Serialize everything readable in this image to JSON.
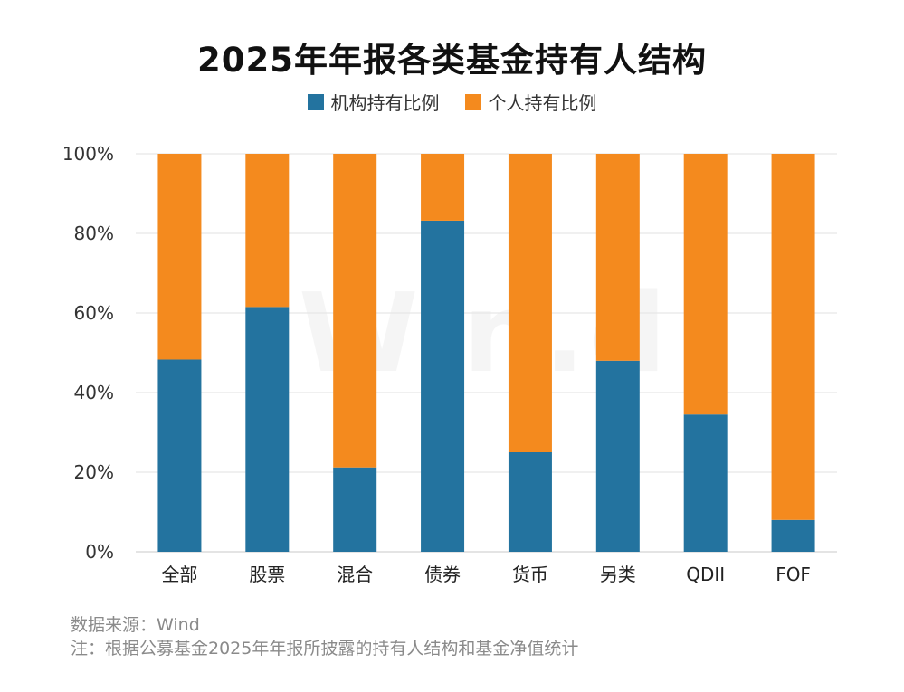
{
  "chart_data": {
    "type": "bar",
    "stacked": true,
    "title": "2025年年报各类基金持有人结构",
    "categories": [
      "全部",
      "股票",
      "混合",
      "债券",
      "货币",
      "另类",
      "QDII",
      "FOF"
    ],
    "series": [
      {
        "name": "机构持有比例",
        "color": "#23739f",
        "values": [
          48.3,
          61.5,
          21.2,
          83.2,
          25.0,
          48.0,
          34.5,
          8.0
        ]
      },
      {
        "name": "个人持有比例",
        "color": "#f48a1e",
        "values": [
          51.7,
          38.5,
          78.8,
          16.8,
          75.0,
          52.0,
          65.5,
          92.0
        ]
      }
    ],
    "ylim": [
      0,
      100
    ],
    "yticks": [
      "0%",
      "20%",
      "40%",
      "60%",
      "80%",
      "100%"
    ],
    "grid": true,
    "legend": "top-center"
  },
  "watermark": "Win.d",
  "notes": {
    "source": "数据来源：Wind",
    "note": "注：根据公募基金2025年年报所披露的持有人结构和基金净值统计"
  }
}
